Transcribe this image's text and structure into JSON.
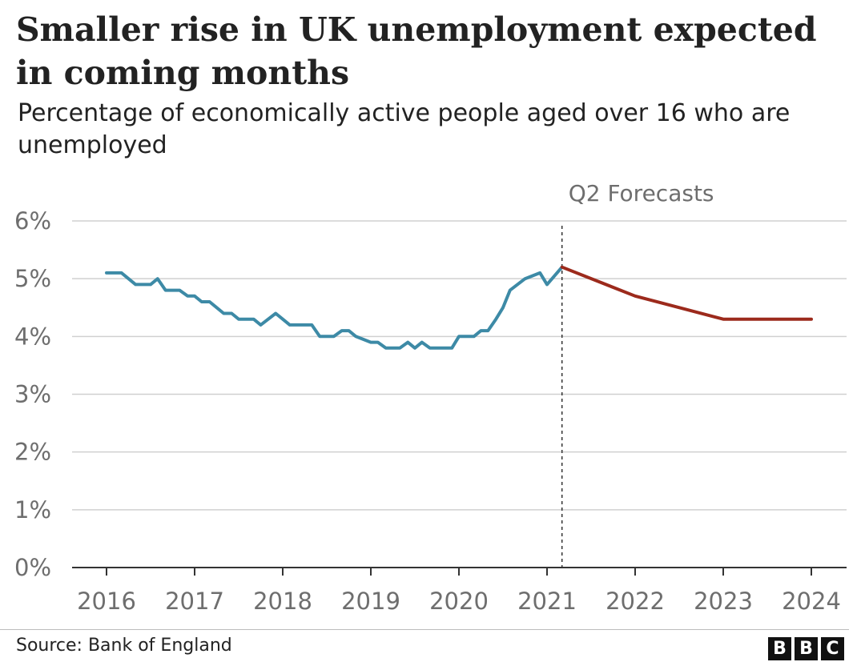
{
  "title": "Smaller rise in UK unemployment expected in coming months",
  "subtitle": "Percentage of economically active people aged over 16 who are unemployed",
  "source": "Source: Bank of England",
  "logo_letters": [
    "B",
    "B",
    "C"
  ],
  "colors": {
    "actual": "#3d8aa6",
    "forecast": "#9c2a1c",
    "grid": "#d0d0d0",
    "axis": "#333333",
    "tick_text": "#6e6e6e",
    "text": "#222222"
  },
  "chart_data": {
    "type": "line",
    "title": "Smaller rise in UK unemployment expected in coming months",
    "subtitle": "Percentage of economically active people aged over 16 who are unemployed",
    "xlim": [
      2016,
      2024
    ],
    "ylim": [
      0,
      6
    ],
    "x_ticks": [
      "2016",
      "2017",
      "2018",
      "2019",
      "2020",
      "2021",
      "2022",
      "2023",
      "2024"
    ],
    "y_ticks": [
      "0%",
      "1%",
      "2%",
      "3%",
      "4%",
      "5%",
      "6%"
    ],
    "grid": true,
    "annotation": {
      "label": "Q2 Forecasts",
      "x": 2021.17
    },
    "series": [
      {
        "key": "actual",
        "x": [
          2016.0,
          2016.17,
          2016.33,
          2016.5,
          2016.58,
          2016.67,
          2016.83,
          2016.92,
          2017.0,
          2017.08,
          2017.17,
          2017.33,
          2017.42,
          2017.5,
          2017.67,
          2017.75,
          2017.92,
          2018.0,
          2018.08,
          2018.25,
          2018.33,
          2018.42,
          2018.58,
          2018.67,
          2018.75,
          2018.83,
          2019.0,
          2019.08,
          2019.17,
          2019.33,
          2019.42,
          2019.5,
          2019.58,
          2019.67,
          2019.83,
          2019.92,
          2020.0,
          2020.17,
          2020.25,
          2020.33,
          2020.42,
          2020.5,
          2020.58,
          2020.75,
          2020.92,
          2021.0,
          2021.17
        ],
        "values": [
          5.1,
          5.1,
          4.9,
          4.9,
          5.0,
          4.8,
          4.8,
          4.7,
          4.7,
          4.6,
          4.6,
          4.4,
          4.4,
          4.3,
          4.3,
          4.2,
          4.4,
          4.3,
          4.2,
          4.2,
          4.2,
          4.0,
          4.0,
          4.1,
          4.1,
          4.0,
          3.9,
          3.9,
          3.8,
          3.8,
          3.9,
          3.8,
          3.9,
          3.8,
          3.8,
          3.8,
          4.0,
          4.0,
          4.1,
          4.1,
          4.3,
          4.5,
          4.8,
          5.0,
          5.1,
          4.9,
          5.2
        ]
      },
      {
        "key": "forecast",
        "x": [
          2021.17,
          2022.0,
          2023.0,
          2024.0
        ],
        "values": [
          5.2,
          4.7,
          4.3,
          4.3
        ]
      }
    ]
  }
}
